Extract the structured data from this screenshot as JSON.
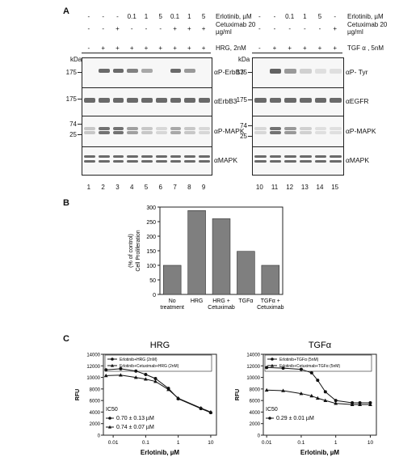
{
  "panel_a": {
    "label": "A",
    "left": {
      "treatment_rows": [
        {
          "name": "Erlotinib, µM",
          "values": [
            "-",
            "-",
            "-",
            "0.1",
            "1",
            "5",
            "0.1",
            "1",
            "5"
          ]
        },
        {
          "name": "Cetuximab 20 µg/ml",
          "values": [
            "-",
            "-",
            "+",
            "-",
            "-",
            "-",
            "+",
            "+",
            "+"
          ]
        },
        {
          "name": "HRG, 2nM",
          "values": [
            "-",
            "+",
            "+",
            "+",
            "+",
            "+",
            "+",
            "+",
            "+"
          ]
        }
      ],
      "kda_label": "kDa",
      "markers": [
        "175",
        "175",
        "74",
        "25"
      ],
      "blots": [
        "αP-ErbB3",
        "αErbB3",
        "αP-MAPK",
        "αMAPK"
      ],
      "lanes": [
        "1",
        "2",
        "3",
        "4",
        "5",
        "6",
        "7",
        "8",
        "9"
      ]
    },
    "right": {
      "treatment_rows": [
        {
          "name": "Erlotinib, µM",
          "values": [
            "-",
            "-",
            "0.1",
            "1",
            "5",
            "-"
          ]
        },
        {
          "name": "Cetuximab 20 µg/ml",
          "values": [
            "-",
            "-",
            "-",
            "-",
            "-",
            "+"
          ]
        },
        {
          "name": "TGF α , 5nM",
          "values": [
            "-",
            "+",
            "+",
            "+",
            "+",
            "+"
          ]
        }
      ],
      "kda_label": "kDa",
      "markers": [
        "175",
        "175",
        "74",
        "25"
      ],
      "blots": [
        "αP- Tyr",
        "αEGFR",
        "αP-MAPK",
        "αMAPK"
      ],
      "lanes": [
        "10",
        "11",
        "12",
        "13",
        "14",
        "15"
      ]
    }
  },
  "panel_b": {
    "label": "B",
    "chart_data": {
      "type": "bar",
      "categories": [
        "No treatment",
        "HRG",
        "HRG + Cetuximab",
        "TGFα",
        "TGFα + Cetuximab"
      ],
      "values": [
        100,
        288,
        260,
        148,
        100
      ],
      "ylabel": "Cell Proliferation (% of control)",
      "ylim": [
        0,
        300
      ],
      "yticks": [
        "0",
        "50",
        "100",
        "150",
        "200",
        "250",
        "300"
      ],
      "bar_color": "#7f7f7f"
    }
  },
  "panel_c": {
    "label": "C",
    "charts": [
      {
        "type": "line",
        "title": "HRG",
        "xlabel": "Erlotinib, µM",
        "ylabel": "RFU",
        "x_scale": "log",
        "xlim": [
          0.005,
          15
        ],
        "ylim": [
          0,
          14000
        ],
        "xticks": [
          "0.01",
          "0.1",
          "1",
          "10"
        ],
        "yticks": [
          "0",
          "2000",
          "4000",
          "6000",
          "8000",
          "10000",
          "12000",
          "14000"
        ],
        "series": [
          {
            "name": "Erlotinib+HRG (2nM)",
            "marker": "circle",
            "x": [
              0.006,
              0.017,
              0.05,
              0.1,
              0.2,
              0.5,
              1,
              5,
              10
            ],
            "y": [
              11300,
              11500,
              11100,
              10500,
              9800,
              8100,
              6300,
              4600,
              3900
            ]
          },
          {
            "name": "Erlotinib+Cetuximab+HRG (2nM)",
            "marker": "triangle",
            "x": [
              0.006,
              0.017,
              0.05,
              0.1,
              0.2,
              0.5,
              1,
              5,
              10
            ],
            "y": [
              10300,
              10400,
              10000,
              9700,
              9300,
              7900,
              6400,
              4700,
              4000
            ]
          }
        ],
        "ic50_label": "IC50",
        "ic50_values": [
          "0.70 ± 0.13 µM",
          "0.74 ± 0.07 µM"
        ]
      },
      {
        "type": "line",
        "title": "TGFα",
        "xlabel": "Erlotinib, µM",
        "ylabel": "RFU",
        "x_scale": "log",
        "xlim": [
          0.008,
          15
        ],
        "ylim": [
          0,
          14000
        ],
        "xticks": [
          "0.01",
          "0.1",
          "1",
          "10"
        ],
        "yticks": [
          "0",
          "2000",
          "4000",
          "6000",
          "8000",
          "10000",
          "12000",
          "14000"
        ],
        "series": [
          {
            "name": "Erlotinib+TGFα (5nM)",
            "marker": "circle",
            "x": [
              0.01,
              0.03,
              0.1,
              0.2,
              0.3,
              0.5,
              1,
              3,
              5,
              10
            ],
            "y": [
              11700,
              11600,
              11400,
              10800,
              9500,
              7500,
              6000,
              5600,
              5600,
              5600
            ]
          },
          {
            "name": "Erlotinib+Cetuximab+TGFα (5nM)",
            "marker": "triangle",
            "x": [
              0.01,
              0.03,
              0.1,
              0.2,
              0.3,
              0.5,
              1,
              3,
              5,
              10
            ],
            "y": [
              7800,
              7700,
              7200,
              6800,
              6400,
              6000,
              5500,
              5300,
              5300,
              5300
            ]
          }
        ],
        "ic50_label": "IC50",
        "ic50_values": [
          "0.29 ± 0.01 µM"
        ]
      }
    ]
  }
}
